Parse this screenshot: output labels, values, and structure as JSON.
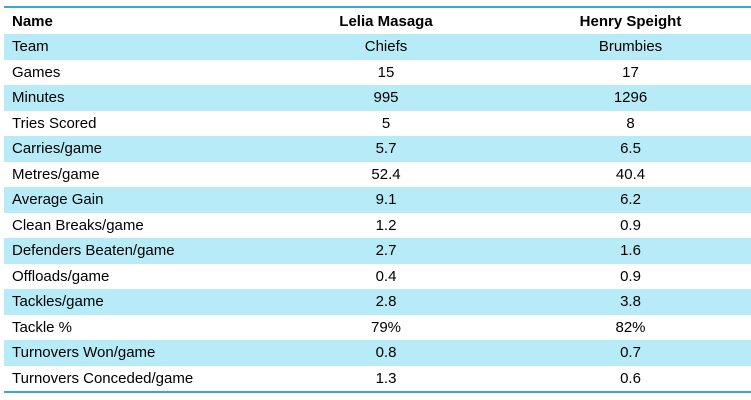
{
  "table": {
    "headers": [
      "Name",
      "Lelia Masaga",
      "Henry Speight"
    ],
    "rows": [
      {
        "label": "Team",
        "a": "Chiefs",
        "b": "Brumbies"
      },
      {
        "label": "Games",
        "a": "15",
        "b": "17"
      },
      {
        "label": "Minutes",
        "a": "995",
        "b": "1296"
      },
      {
        "label": "Tries Scored",
        "a": "5",
        "b": "8"
      },
      {
        "label": "Carries/game",
        "a": "5.7",
        "b": "6.5"
      },
      {
        "label": "Metres/game",
        "a": "52.4",
        "b": "40.4"
      },
      {
        "label": "Average Gain",
        "a": "9.1",
        "b": "6.2"
      },
      {
        "label": "Clean Breaks/game",
        "a": "1.2",
        "b": "0.9"
      },
      {
        "label": "Defenders Beaten/game",
        "a": "2.7",
        "b": "1.6"
      },
      {
        "label": "Offloads/game",
        "a": "0.4",
        "b": "0.9"
      },
      {
        "label": "Tackles/game",
        "a": "2.8",
        "b": "3.8"
      },
      {
        "label": "Tackle %",
        "a": "79%",
        "b": "82%"
      },
      {
        "label": "Turnovers Won/game",
        "a": "0.8",
        "b": "0.7"
      },
      {
        "label": "Turnovers Conceded/game",
        "a": "1.3",
        "b": "0.6"
      }
    ]
  },
  "colors": {
    "row_shade": "#b7ebf8",
    "rule": "#3aa6d6"
  }
}
